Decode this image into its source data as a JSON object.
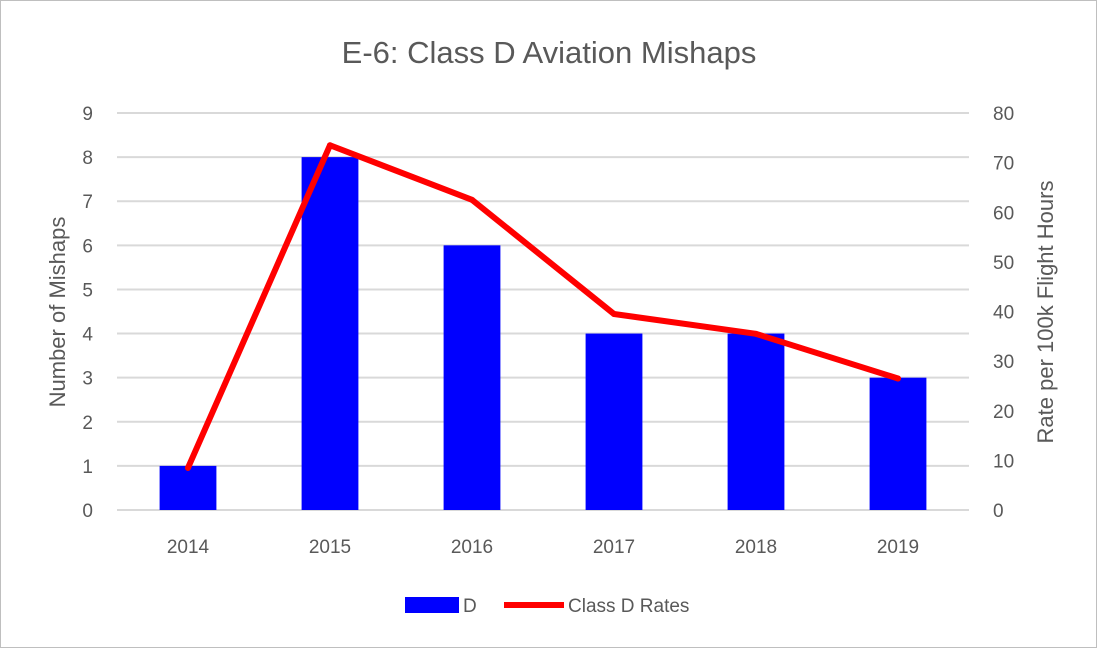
{
  "chart_data": {
    "type": "bar",
    "title": "E-6: Class D Aviation Mishaps",
    "categories": [
      "2014",
      "2015",
      "2016",
      "2017",
      "2018",
      "2019"
    ],
    "series": [
      {
        "name": "D",
        "kind": "bar",
        "axis": "left",
        "values": [
          1,
          8,
          6,
          4,
          4,
          3
        ]
      },
      {
        "name": "Class D Rates",
        "kind": "line",
        "axis": "right",
        "values": [
          8.5,
          73.5,
          62.5,
          39.5,
          35.5,
          26.5
        ]
      }
    ],
    "ylabel": "Number of Mishaps",
    "ylim": [
      0,
      9
    ],
    "yticks": [
      "0",
      "1",
      "2",
      "3",
      "4",
      "5",
      "6",
      "7",
      "8",
      "9"
    ],
    "y2label": "Rate per 100k Flight Hours",
    "y2lim": [
      0,
      80
    ],
    "y2ticks": [
      "0",
      "10",
      "20",
      "30",
      "40",
      "50",
      "60",
      "70",
      "80"
    ],
    "grid": true,
    "legend_position": "bottom",
    "colors": {
      "bar": "#0000ff",
      "line": "#ff0000",
      "grid": "#d9d9d9",
      "text": "#595959"
    }
  }
}
